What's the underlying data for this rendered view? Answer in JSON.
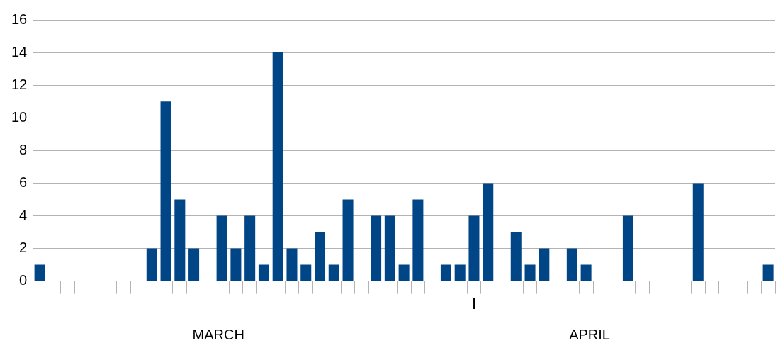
{
  "chart_data": {
    "type": "bar",
    "categories": [
      null,
      null,
      null,
      null,
      null,
      null,
      null,
      null,
      null,
      null,
      null,
      null,
      null,
      null,
      null,
      null,
      null,
      null,
      null,
      null,
      null,
      null,
      null,
      null,
      null,
      null,
      null,
      null,
      null,
      null,
      null,
      "I",
      null,
      null,
      null,
      null,
      null,
      null,
      null,
      null,
      null,
      null,
      null,
      null,
      null,
      null,
      null,
      null,
      null,
      null,
      null,
      null,
      null
    ],
    "values": [
      1,
      0,
      0,
      0,
      0,
      0,
      0,
      0,
      2,
      11,
      5,
      2,
      0,
      4,
      2,
      4,
      1,
      14,
      2,
      1,
      3,
      1,
      5,
      0,
      4,
      4,
      1,
      5,
      0,
      1,
      1,
      4,
      6,
      0,
      3,
      1,
      2,
      0,
      2,
      1,
      0,
      0,
      4,
      0,
      0,
      0,
      0,
      6,
      0,
      0,
      0,
      0,
      1
    ],
    "color": "#004586",
    "ylim": [
      0,
      16
    ],
    "yticks": [
      0,
      2,
      4,
      6,
      8,
      10,
      12,
      14,
      16
    ],
    "grid": "y",
    "annotations": [
      "MARCH",
      "APRIL"
    ]
  }
}
